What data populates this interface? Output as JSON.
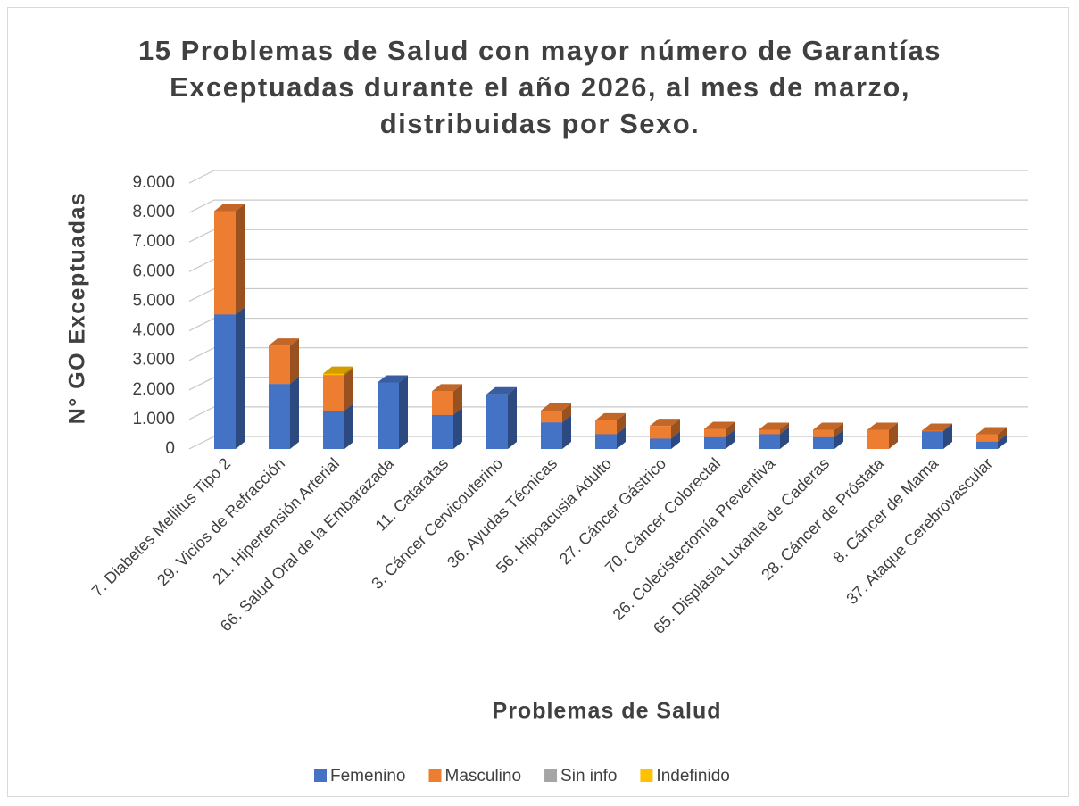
{
  "chart_data": {
    "type": "bar3d_stacked",
    "title": "15 Problemas de Salud con mayor número de Garantías Exceptuadas durante el año 2026, al mes de marzo, distribuidas por Sexo.",
    "x_label": "Problemas de Salud",
    "y_label": "N° GO Exceptuadas",
    "categories": [
      "7. Diabetes Mellitus Tipo 2",
      "29. Vicios de Refracción",
      "21. Hipertensión Arterial",
      "66. Salud Oral de la Embarazada",
      "11. Cataratas",
      "3. Cáncer Cervicouterino",
      "36. Ayudas Técnicas",
      "56. Hipoacusia Adulto",
      "27. Cáncer Gástrico",
      "70. Cáncer Colorectal",
      "26. Colecistectomía Preventiva",
      "65. Displasia Luxante de Caderas",
      "28. Cáncer de Próstata",
      "8. Cáncer de Mama",
      "37. Ataque Cerebrovascular"
    ],
    "series": [
      {
        "name": "Femenino",
        "color": "#4472c4",
        "values": [
          4550,
          2200,
          1300,
          2250,
          1150,
          1850,
          900,
          500,
          350,
          400,
          500,
          400,
          0,
          600,
          250
        ]
      },
      {
        "name": "Masculino",
        "color": "#ed7d31",
        "values": [
          3500,
          1300,
          1200,
          0,
          800,
          0,
          400,
          470,
          430,
          280,
          150,
          250,
          650,
          20,
          250
        ]
      },
      {
        "name": "Sin info",
        "color": "#a5a5a5",
        "values": [
          0,
          0,
          0,
          0,
          0,
          0,
          0,
          0,
          0,
          0,
          0,
          0,
          0,
          0,
          0
        ]
      },
      {
        "name": "Indefinido",
        "color": "#ffc000",
        "values": [
          0,
          0,
          50,
          0,
          0,
          0,
          0,
          0,
          0,
          0,
          0,
          0,
          0,
          0,
          0
        ]
      }
    ],
    "ylim": [
      0,
      9000
    ],
    "yticks": [
      0,
      {
        "value": 1000,
        "label": "1.000"
      },
      {
        "value": 2000,
        "label": "2.000"
      },
      {
        "value": 3000,
        "label": "3.000"
      },
      {
        "value": 4000,
        "label": "4.000"
      },
      {
        "value": 5000,
        "label": "5.000"
      },
      {
        "value": 6000,
        "label": "6.000"
      },
      {
        "value": 7000,
        "label": "7.000"
      },
      {
        "value": 8000,
        "label": "8.000"
      },
      {
        "value": 9000,
        "label": "9.000"
      }
    ],
    "grid": true,
    "legend": "bottom",
    "stacked": true
  }
}
